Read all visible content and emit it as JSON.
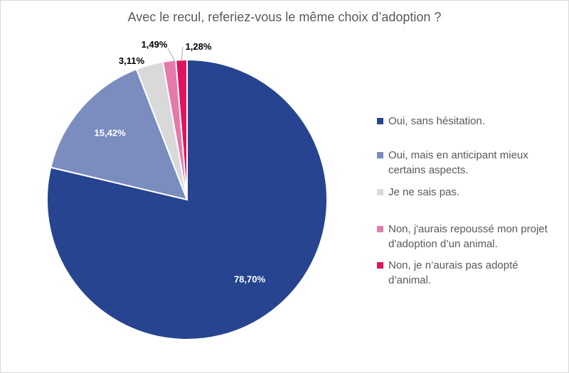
{
  "chart_data": {
    "type": "pie",
    "title": "Avec le recul, referiez-vous le même choix d’adoption ?",
    "slices": [
      {
        "label": "Oui, sans hésitation.",
        "value": 78.7,
        "display": "78,70%",
        "color": "#26448F"
      },
      {
        "label": "Oui, mais en anticipant mieux certains aspects.",
        "value": 15.42,
        "display": "15,42%",
        "color": "#7A8DBE"
      },
      {
        "label": "Je ne sais pas.",
        "value": 3.11,
        "display": "3,11%",
        "color": "#D9D9D9"
      },
      {
        "label": "Non, j'aurais repoussé mon projet d'adoption d’un animal.",
        "value": 1.49,
        "display": "1,49%",
        "color": "#E57AAA"
      },
      {
        "label": "Non, je n’aurais pas adopté d’animal.",
        "value": 1.28,
        "display": "1,28%",
        "color": "#E0135C"
      }
    ],
    "legend_position": "right"
  }
}
